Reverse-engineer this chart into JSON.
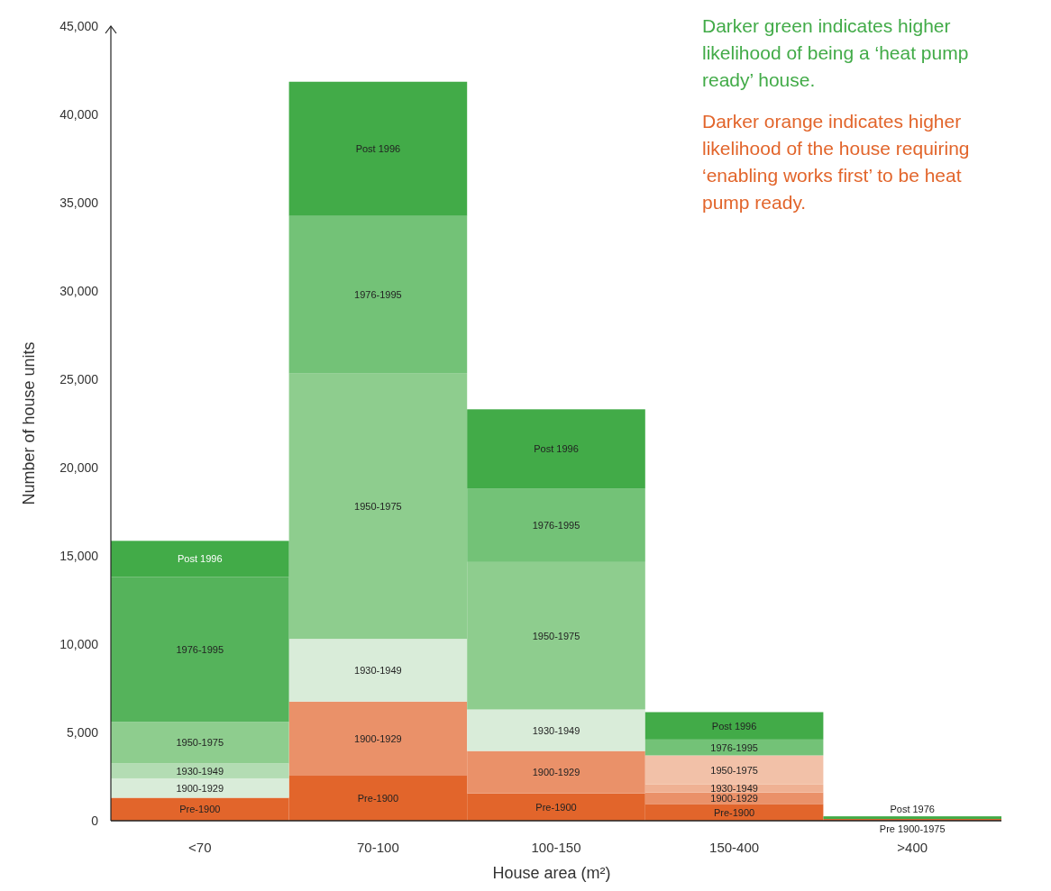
{
  "chart_data": {
    "type": "bar",
    "stacked": true,
    "xlabel": "House area (m²)",
    "ylabel": "Number of house units",
    "categories": [
      "<70",
      "70-100",
      "100-150",
      "150-400",
      ">400"
    ],
    "ylim": [
      0,
      45000
    ],
    "yticks": [
      0,
      {
        "value": 5000,
        "label": "5,000"
      },
      {
        "value": 10000,
        "label": "10,000"
      },
      {
        "value": 15000,
        "label": "15,000"
      },
      {
        "value": 20000,
        "label": "20,000"
      },
      {
        "value": 25000,
        "label": "25,000"
      },
      {
        "value": 30000,
        "label": "30,000"
      },
      {
        "value": 35000,
        "label": "35,000"
      },
      {
        "value": 40000,
        "label": "40,000"
      },
      {
        "value": 45000,
        "label": "45,000"
      }
    ],
    "grid": false,
    "series": [
      {
        "name": "Pre-1900",
        "values": [
          1300,
          2550,
          1550,
          950,
          null
        ],
        "colors": [
          "#e2652b",
          "#e2652b",
          "#e2652b",
          "#e2652b",
          null
        ]
      },
      {
        "name": "1900-1929",
        "values": [
          1100,
          4200,
          2400,
          650,
          null
        ],
        "colors": [
          "#d9ecd9",
          "#ea9169",
          "#ea9169",
          "#ea9169",
          null
        ]
      },
      {
        "name": "1930-1949",
        "values": [
          850,
          3550,
          2350,
          450,
          null
        ],
        "colors": [
          "#b3dcb3",
          "#d9ecd9",
          "#d9ecd9",
          "#efb193",
          null
        ]
      },
      {
        "name": "1950-1975",
        "values": [
          2350,
          15050,
          8350,
          1650,
          null
        ],
        "colors": [
          "#8ecd8e",
          "#8ecd8e",
          "#8ecd8e",
          "#f2c1a8",
          null
        ]
      },
      {
        "name": "1976-1995",
        "values": [
          8200,
          8900,
          4150,
          900,
          null
        ],
        "colors": [
          "#55b35b",
          "#73c277",
          "#73c277",
          "#73c277",
          null
        ]
      },
      {
        "name": "Post 1996",
        "values": [
          2050,
          7600,
          4500,
          1550,
          null
        ],
        "colors": [
          "#42ab48",
          "#42ab48",
          "#42ab48",
          "#42ab48",
          null
        ]
      },
      {
        "name": "Pre 1900-1975",
        "values": [
          null,
          null,
          null,
          null,
          100
        ],
        "colors": [
          null,
          null,
          null,
          null,
          "#e2652b"
        ]
      },
      {
        "name": "Post 1976",
        "values": [
          null,
          null,
          null,
          null,
          150
        ],
        "colors": [
          null,
          null,
          null,
          null,
          "#42ab48"
        ]
      }
    ],
    "annotations": [
      "Darker green indicates higher likelihood of being a ‘heat pump ready’ house.",
      "Darker orange indicates higher likelihood of the house requiring ‘enabling works first’ to be heat pump ready."
    ]
  }
}
